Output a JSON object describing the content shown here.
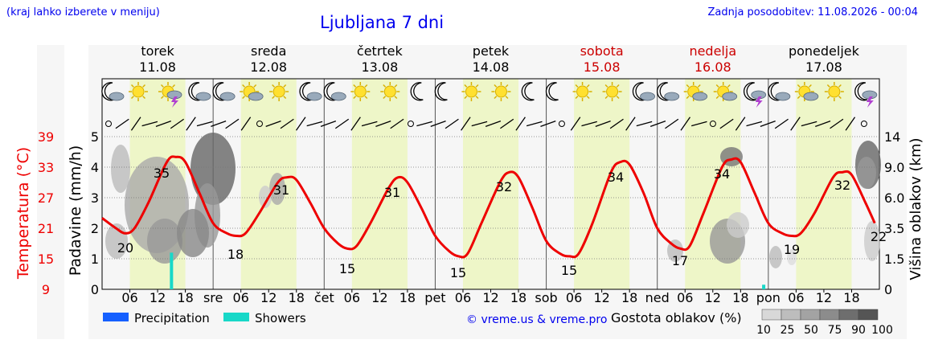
{
  "header": {
    "note_left": "(kraj lahko izberete v meniju)",
    "title": "Ljubljana 7 dni",
    "note_right": "Zadnja posodobitev: 11.08.2026 - 00:04"
  },
  "days": [
    {
      "name": "torek",
      "date": "11.08",
      "weekend": false,
      "abbr": "",
      "icons": [
        "moon-cloud",
        "sun",
        "sun-thunder",
        "moon-cloud"
      ]
    },
    {
      "name": "sreda",
      "date": "12.08",
      "weekend": false,
      "abbr": "sre",
      "icons": [
        "moon-cloud",
        "sun-cloud",
        "sun",
        "moon-cloud"
      ]
    },
    {
      "name": "četrtek",
      "date": "13.08",
      "weekend": false,
      "abbr": "čet",
      "icons": [
        "moon-cloud",
        "sun",
        "sun",
        "moon"
      ]
    },
    {
      "name": "petek",
      "date": "14.08",
      "weekend": false,
      "abbr": "pet",
      "icons": [
        "moon",
        "sun",
        "sun",
        "moon"
      ]
    },
    {
      "name": "sobota",
      "date": "15.08",
      "weekend": true,
      "abbr": "sob",
      "icons": [
        "moon",
        "sun",
        "sun",
        "moon-cloud"
      ]
    },
    {
      "name": "nedelja",
      "date": "16.08",
      "weekend": true,
      "abbr": "ned",
      "icons": [
        "moon-cloud",
        "sun-cloud",
        "sun-cloud",
        "moon-thunder"
      ]
    },
    {
      "name": "ponedeljek",
      "date": "17.08",
      "weekend": false,
      "abbr": "pon",
      "icons": [
        "moon-cloud",
        "sun-cloud",
        "sun",
        "moon-thunder"
      ]
    }
  ],
  "chart_data": {
    "type": "line",
    "hour_ticks": [
      "06",
      "12",
      "18"
    ],
    "y_left_temp": {
      "label": "Temperatura (°C)",
      "ticks": [
        "39",
        "33",
        "27",
        "21",
        "15",
        "9"
      ],
      "color": "#ee0000"
    },
    "y_left_precip": {
      "label": "Padavine (mm/h)",
      "ticks": [
        "5",
        "4",
        "3",
        "2",
        "1",
        "0"
      ]
    },
    "y_right": {
      "label": "Višina oblakov (km)",
      "ticks": [
        "14",
        "9.0",
        "6.0",
        "3.5",
        "1.5",
        "0"
      ]
    },
    "temperature_series": {
      "name": "Temperatura",
      "color": "#ee0000",
      "hours": [
        0,
        3,
        5,
        7,
        10,
        14,
        16,
        18,
        21,
        24,
        27,
        29,
        31,
        34,
        38,
        40,
        42,
        45,
        48,
        51,
        53,
        55,
        58,
        62,
        64,
        66,
        69,
        72,
        75,
        77,
        79,
        82,
        86,
        88,
        90,
        93,
        96,
        99,
        101,
        103,
        106,
        110,
        112,
        114,
        117,
        120,
        123,
        125,
        127,
        130,
        134,
        136,
        138,
        141,
        144,
        147,
        149,
        151,
        154,
        158,
        160,
        162,
        165,
        167
      ],
      "values": [
        23,
        21,
        20,
        21,
        26,
        34,
        35,
        34,
        28,
        22,
        20,
        19.5,
        20,
        24,
        30,
        31,
        30.5,
        26,
        21,
        18,
        17,
        17.5,
        22,
        29,
        31,
        30,
        25,
        19.5,
        16.5,
        15.5,
        16,
        22,
        30,
        32,
        31,
        25,
        18.5,
        16,
        15.5,
        16,
        22,
        32,
        34,
        33.5,
        28,
        21,
        18,
        17,
        17.5,
        24,
        33,
        34.5,
        34,
        28,
        22,
        20,
        19.5,
        20,
        24,
        31,
        32,
        31.5,
        26,
        22
      ]
    },
    "temperature_labels": [
      {
        "hour": 4,
        "value": "20"
      },
      {
        "hour": 14,
        "value": "35"
      },
      {
        "hour": 32,
        "value": "31"
      },
      {
        "hour": 28,
        "value": "18"
      },
      {
        "hour": 52,
        "value": "15"
      },
      {
        "hour": 58,
        "value": "31"
      },
      {
        "hour": 76,
        "value": "15"
      },
      {
        "hour": 86,
        "value": "32"
      },
      {
        "hour": 100,
        "value": "15"
      },
      {
        "hour": 110,
        "value": "34"
      },
      {
        "hour": 124,
        "value": "17"
      },
      {
        "hour": 134,
        "value": "34"
      },
      {
        "hour": 148,
        "value": "19"
      },
      {
        "hour": 159,
        "value": "32"
      },
      {
        "hour": 167,
        "value": "22"
      }
    ],
    "showers_mm": [
      {
        "hour": 15,
        "value": 1.2
      },
      {
        "hour": 143,
        "value": 0.15
      }
    ],
    "legend": [
      {
        "label": "Precipitation",
        "color": "#1560ff"
      },
      {
        "label": "Showers",
        "color": "#18d8c8"
      }
    ],
    "credit": "© vreme.us & vreme.pro",
    "cloud_legend": {
      "label": "Gostota oblakov (%)",
      "ticks": [
        "10",
        "25",
        "50",
        "75",
        "90",
        "100"
      ],
      "shades": [
        "#d8d8d8",
        "#bdbdbd",
        "#a3a3a3",
        "#8c8c8c",
        "#6e6e6e",
        "#555555"
      ]
    },
    "grid": true
  },
  "colors": {
    "day_shade": "#eef6c8",
    "night_bg": "#f6f6f6",
    "weekend": "#cc0000",
    "text": "#000000",
    "blue": "#0000ee"
  }
}
